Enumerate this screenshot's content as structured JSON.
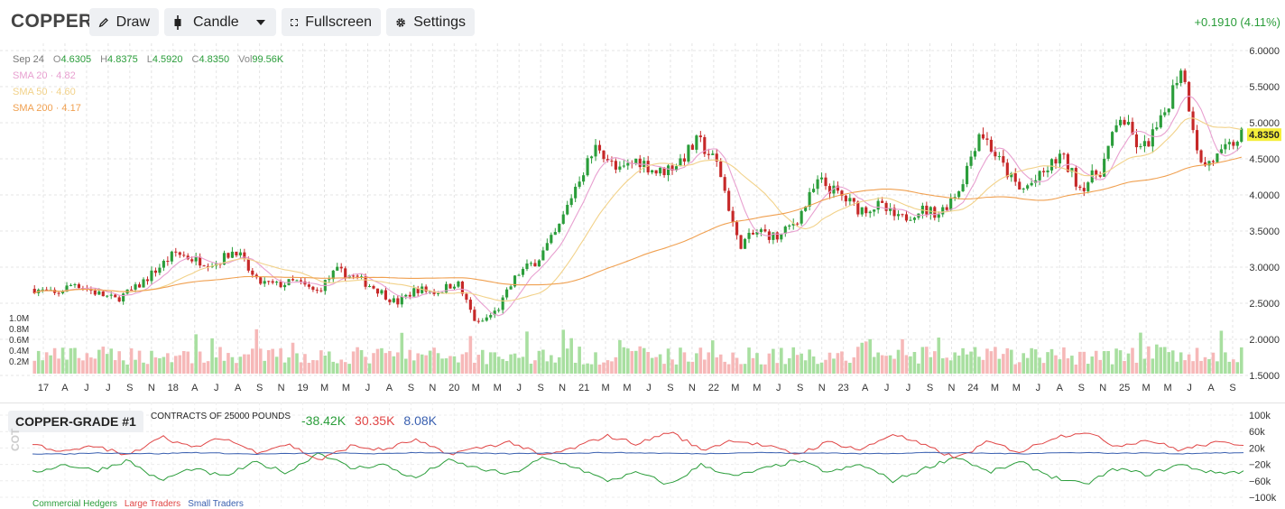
{
  "toolbar": {
    "symbol": "COPPER",
    "draw_label": "Draw",
    "chart_type_label": "Candle",
    "fullscreen_label": "Fullscreen",
    "settings_label": "Settings",
    "change": "+0.1910 (4.11%)",
    "icons": [
      "pencil-icon",
      "candle-icon",
      "chevron-down-icon",
      "expand-icon",
      "gear-icon"
    ]
  },
  "legend": {
    "date": "Sep 24",
    "open_key": "O",
    "open": "4.6305",
    "high_key": "H",
    "high": "4.8375",
    "low_key": "L",
    "low": "4.5920",
    "close_key": "C",
    "close": "4.8350",
    "vol_key": "Vol",
    "vol": "99.56K",
    "sma20": "SMA 20 · 4.82",
    "sma50": "SMA 50 · 4.60",
    "sma200": "SMA 200 · 4.17"
  },
  "colors": {
    "up": "#2a9d3a",
    "down": "#c62828",
    "vol_up": "#a8dfa0",
    "vol_down": "#f6b8b8",
    "sma20": "#e8a0d0",
    "sma50": "#f2d28a",
    "sma200": "#f0a050",
    "commercial": "#2a9d3a",
    "large": "#e04545",
    "small": "#3a60b0",
    "price_tag": "#f5ee3a"
  },
  "chart_data": [
    {
      "type": "candlestick",
      "title": "COPPER",
      "current_price": "4.8350",
      "ylim": [
        1.5,
        6.0
      ],
      "y_ticks": [
        "6.0000",
        "5.5000",
        "5.0000",
        "4.5000",
        "4.0000",
        "3.5000",
        "3.0000",
        "2.5000",
        "2.0000",
        "1.5000"
      ],
      "volume_ticks": [
        "1.0M",
        "0.8M",
        "0.6M",
        "0.4M",
        "0.2M"
      ],
      "x_ticks": [
        "17",
        "A",
        "J",
        "J",
        "S",
        "N",
        "18",
        "A",
        "J",
        "A",
        "S",
        "N",
        "19",
        "M",
        "M",
        "J",
        "A",
        "S",
        "N",
        "20",
        "M",
        "M",
        "J",
        "S",
        "N",
        "21",
        "M",
        "M",
        "J",
        "S",
        "N",
        "22",
        "M",
        "M",
        "J",
        "S",
        "N",
        "23",
        "A",
        "J",
        "J",
        "S",
        "N",
        "24",
        "M",
        "M",
        "J",
        "A",
        "S",
        "N",
        "25",
        "M",
        "M",
        "J",
        "A",
        "S"
      ],
      "series": [
        {
          "name": "Close",
          "anchor_values": [
            2.7,
            2.62,
            2.78,
            2.65,
            2.55,
            2.7,
            2.95,
            3.2,
            3.1,
            3.05,
            3.25,
            2.8,
            2.75,
            2.8,
            2.65,
            2.95,
            2.85,
            2.7,
            2.5,
            2.7,
            2.65,
            2.8,
            2.2,
            2.4,
            2.9,
            3.1,
            3.5,
            4.2,
            4.7,
            4.3,
            4.5,
            4.3,
            4.45,
            4.75,
            4.4,
            3.3,
            3.5,
            3.4,
            3.7,
            4.2,
            4.0,
            3.8,
            3.85,
            3.65,
            3.8,
            3.75,
            4.1,
            4.9,
            4.45,
            4.05,
            4.25,
            4.55,
            4.1,
            4.35,
            5.1,
            4.6,
            5.0,
            5.8,
            4.4,
            4.55,
            4.84
          ]
        },
        {
          "name": "SMA 20",
          "value": 4.82
        },
        {
          "name": "SMA 50",
          "value": 4.6
        },
        {
          "name": "SMA 200",
          "value": 4.17
        }
      ]
    },
    {
      "type": "line",
      "title": "COPPER-GRADE #1",
      "subtitle": "CONTRACTS OF 25000 POUNDS",
      "ylabel": "COT",
      "ylim": [
        -100000,
        100000
      ],
      "y_ticks": [
        "100k",
        "60k",
        "20k",
        "−20k",
        "−60k",
        "−100k"
      ],
      "series": [
        {
          "name": "Commercial Hedgers",
          "value": "-38.42K",
          "anchor_values": [
            -40,
            -20,
            -35,
            -10,
            -60,
            -30,
            -50,
            -15,
            -40,
            10,
            -30,
            -20,
            -55,
            -10,
            -30,
            -45,
            -5,
            -25,
            -60,
            -40,
            -70,
            -20,
            -50,
            -30,
            -10,
            -40,
            -20,
            -60,
            -30,
            0,
            -40,
            -15,
            -50,
            -70,
            -30,
            -45,
            -20,
            -40,
            -38
          ]
        },
        {
          "name": "Large Traders",
          "value": "30.35K",
          "anchor_values": [
            30,
            10,
            25,
            0,
            50,
            20,
            45,
            10,
            30,
            -10,
            25,
            15,
            40,
            5,
            20,
            35,
            0,
            20,
            50,
            30,
            60,
            15,
            40,
            25,
            5,
            35,
            15,
            55,
            25,
            -5,
            35,
            10,
            45,
            60,
            25,
            40,
            15,
            32,
            30
          ]
        },
        {
          "name": "Small Traders",
          "value": "8.08K",
          "anchor_values": [
            6,
            5,
            8,
            7,
            6,
            9,
            7,
            5,
            6,
            8,
            7,
            6,
            9,
            8,
            7,
            6,
            8,
            7,
            9,
            8,
            7,
            6,
            8,
            9,
            7,
            8,
            6,
            7,
            9,
            8,
            7,
            6,
            8,
            9,
            7,
            8,
            6,
            8,
            8
          ]
        }
      ]
    }
  ]
}
